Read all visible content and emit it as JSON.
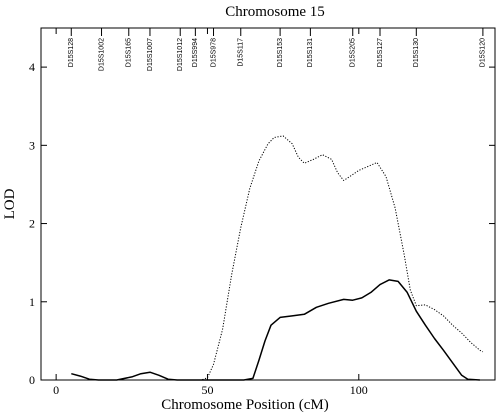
{
  "chart_data": {
    "type": "line",
    "title": "Chromosome 15",
    "xlabel": "Chromosome Position (cM)",
    "ylabel": "LOD",
    "xlim": [
      -5,
      145
    ],
    "ylim": [
      0,
      4.5
    ],
    "x_ticks": [
      0,
      50,
      100
    ],
    "y_ticks": [
      0,
      1,
      2,
      3,
      4
    ],
    "grid": false,
    "markers": [
      {
        "name": "D15S128",
        "x": 5
      },
      {
        "name": "D15S1002",
        "x": 15
      },
      {
        "name": "D15S165",
        "x": 24
      },
      {
        "name": "D15S1007",
        "x": 31
      },
      {
        "name": "D15S1012",
        "x": 41
      },
      {
        "name": "D15S994",
        "x": 46
      },
      {
        "name": "D15S978",
        "x": 52
      },
      {
        "name": "D15S117",
        "x": 61
      },
      {
        "name": "D15S153",
        "x": 74
      },
      {
        "name": "D15S131",
        "x": 84
      },
      {
        "name": "D15S205",
        "x": 98
      },
      {
        "name": "D15S127",
        "x": 107
      },
      {
        "name": "D15S130",
        "x": 119
      },
      {
        "name": "D15S120",
        "x": 141
      }
    ],
    "series": [
      {
        "style": "solid",
        "color": "#000000",
        "points": [
          [
            5,
            0.08
          ],
          [
            8,
            0.05
          ],
          [
            11,
            0.01
          ],
          [
            14,
            0
          ],
          [
            20,
            0
          ],
          [
            25,
            0.04
          ],
          [
            28,
            0.08
          ],
          [
            31,
            0.1
          ],
          [
            34,
            0.06
          ],
          [
            37,
            0.01
          ],
          [
            40,
            0
          ],
          [
            62,
            0
          ],
          [
            65,
            0.02
          ],
          [
            67,
            0.25
          ],
          [
            69,
            0.5
          ],
          [
            71,
            0.7
          ],
          [
            74,
            0.8
          ],
          [
            78,
            0.82
          ],
          [
            82,
            0.84
          ],
          [
            86,
            0.93
          ],
          [
            90,
            0.98
          ],
          [
            95,
            1.03
          ],
          [
            98,
            1.02
          ],
          [
            101,
            1.05
          ],
          [
            104,
            1.12
          ],
          [
            107,
            1.22
          ],
          [
            110,
            1.28
          ],
          [
            113,
            1.26
          ],
          [
            116,
            1.12
          ],
          [
            119,
            0.88
          ],
          [
            122,
            0.7
          ],
          [
            125,
            0.53
          ],
          [
            128,
            0.38
          ],
          [
            131,
            0.22
          ],
          [
            134,
            0.06
          ],
          [
            136,
            0.01
          ],
          [
            140,
            0
          ]
        ]
      },
      {
        "style": "dotted",
        "color": "#000000",
        "points": [
          [
            40,
            0
          ],
          [
            48,
            0
          ],
          [
            50,
            0.03
          ],
          [
            52,
            0.2
          ],
          [
            55,
            0.65
          ],
          [
            58,
            1.35
          ],
          [
            61,
            1.95
          ],
          [
            64,
            2.45
          ],
          [
            67,
            2.8
          ],
          [
            70,
            3.02
          ],
          [
            72,
            3.1
          ],
          [
            75,
            3.12
          ],
          [
            78,
            3.02
          ],
          [
            80,
            2.85
          ],
          [
            82,
            2.77
          ],
          [
            85,
            2.82
          ],
          [
            88,
            2.88
          ],
          [
            91,
            2.82
          ],
          [
            93,
            2.65
          ],
          [
            95,
            2.55
          ],
          [
            97,
            2.6
          ],
          [
            100,
            2.68
          ],
          [
            103,
            2.73
          ],
          [
            106,
            2.78
          ],
          [
            109,
            2.6
          ],
          [
            112,
            2.2
          ],
          [
            115,
            1.6
          ],
          [
            117,
            1.15
          ],
          [
            119,
            0.95
          ],
          [
            122,
            0.96
          ],
          [
            125,
            0.9
          ],
          [
            128,
            0.82
          ],
          [
            131,
            0.7
          ],
          [
            134,
            0.6
          ],
          [
            137,
            0.48
          ],
          [
            140,
            0.38
          ],
          [
            141,
            0.36
          ]
        ]
      }
    ]
  }
}
